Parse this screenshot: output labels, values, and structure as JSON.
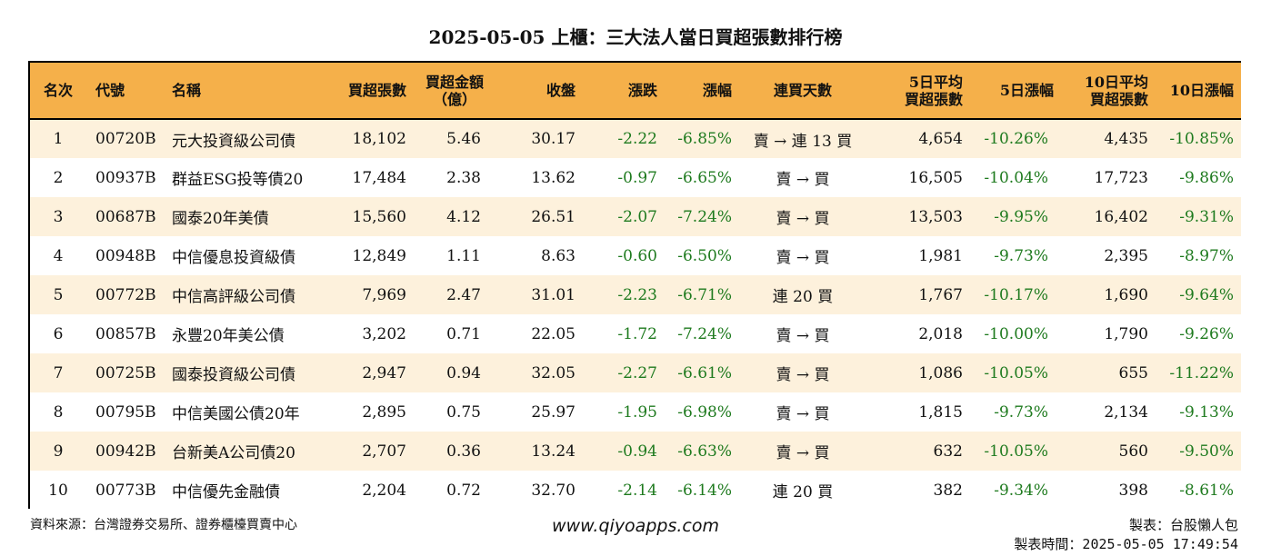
{
  "title": "2025-05-05 上櫃：三大法人當日買超張數排行榜",
  "headers": {
    "rank": "名次",
    "code": "代號",
    "name": "名稱",
    "buy_lots": "買超張數",
    "buy_amount_1": "買超金額",
    "buy_amount_2": "（億）",
    "close": "收盤",
    "change": "漲跌",
    "pct": "漲幅",
    "days": "連買天數",
    "avg5_1": "5日平均",
    "avg5_2": "買超張數",
    "pct5": "5日漲幅",
    "avg10_1": "10日平均",
    "avg10_2": "買超張數",
    "pct10": "10日漲幅"
  },
  "rows": [
    {
      "rank": "1",
      "code": "00720B",
      "name": "元大投資級公司債",
      "buy_lots": "18,102",
      "buy_amount": "5.46",
      "close": "30.17",
      "change": "-2.22",
      "pct": "-6.85%",
      "days": "賣 → 連 13 買",
      "avg5": "4,654",
      "pct5": "-10.26%",
      "avg10": "4,435",
      "pct10": "-10.85%"
    },
    {
      "rank": "2",
      "code": "00937B",
      "name": "群益ESG投等債20",
      "buy_lots": "17,484",
      "buy_amount": "2.38",
      "close": "13.62",
      "change": "-0.97",
      "pct": "-6.65%",
      "days": "賣 → 買",
      "avg5": "16,505",
      "pct5": "-10.04%",
      "avg10": "17,723",
      "pct10": "-9.86%"
    },
    {
      "rank": "3",
      "code": "00687B",
      "name": "國泰20年美債",
      "buy_lots": "15,560",
      "buy_amount": "4.12",
      "close": "26.51",
      "change": "-2.07",
      "pct": "-7.24%",
      "days": "賣 → 買",
      "avg5": "13,503",
      "pct5": "-9.95%",
      "avg10": "16,402",
      "pct10": "-9.31%"
    },
    {
      "rank": "4",
      "code": "00948B",
      "name": "中信優息投資級債",
      "buy_lots": "12,849",
      "buy_amount": "1.11",
      "close": "8.63",
      "change": "-0.60",
      "pct": "-6.50%",
      "days": "賣 → 買",
      "avg5": "1,981",
      "pct5": "-9.73%",
      "avg10": "2,395",
      "pct10": "-8.97%"
    },
    {
      "rank": "5",
      "code": "00772B",
      "name": "中信高評級公司債",
      "buy_lots": "7,969",
      "buy_amount": "2.47",
      "close": "31.01",
      "change": "-2.23",
      "pct": "-6.71%",
      "days": "連 20 買",
      "avg5": "1,767",
      "pct5": "-10.17%",
      "avg10": "1,690",
      "pct10": "-9.64%"
    },
    {
      "rank": "6",
      "code": "00857B",
      "name": "永豐20年美公債",
      "buy_lots": "3,202",
      "buy_amount": "0.71",
      "close": "22.05",
      "change": "-1.72",
      "pct": "-7.24%",
      "days": "賣 → 買",
      "avg5": "2,018",
      "pct5": "-10.00%",
      "avg10": "1,790",
      "pct10": "-9.26%"
    },
    {
      "rank": "7",
      "code": "00725B",
      "name": "國泰投資級公司債",
      "buy_lots": "2,947",
      "buy_amount": "0.94",
      "close": "32.05",
      "change": "-2.27",
      "pct": "-6.61%",
      "days": "賣 → 買",
      "avg5": "1,086",
      "pct5": "-10.05%",
      "avg10": "655",
      "pct10": "-11.22%"
    },
    {
      "rank": "8",
      "code": "00795B",
      "name": "中信美國公債20年",
      "buy_lots": "2,895",
      "buy_amount": "0.75",
      "close": "25.97",
      "change": "-1.95",
      "pct": "-6.98%",
      "days": "賣 → 買",
      "avg5": "1,815",
      "pct5": "-9.73%",
      "avg10": "2,134",
      "pct10": "-9.13%"
    },
    {
      "rank": "9",
      "code": "00942B",
      "name": "台新美A公司債20",
      "buy_lots": "2,707",
      "buy_amount": "0.36",
      "close": "13.24",
      "change": "-0.94",
      "pct": "-6.63%",
      "days": "賣 → 買",
      "avg5": "632",
      "pct5": "-10.05%",
      "avg10": "560",
      "pct10": "-9.50%"
    },
    {
      "rank": "10",
      "code": "00773B",
      "name": "中信優先金融債",
      "buy_lots": "2,204",
      "buy_amount": "0.72",
      "close": "32.70",
      "change": "-2.14",
      "pct": "-6.14%",
      "days": "連 20 買",
      "avg5": "382",
      "pct5": "-9.34%",
      "avg10": "398",
      "pct10": "-8.61%"
    }
  ],
  "footer": {
    "source": "資料來源：台灣證券交易所、證券櫃檯買賣中心",
    "website": "www.qiyoapps.com",
    "maker": "製表：台股懶人包",
    "made_time": "製表時間：2025-05-05 17:49:54"
  },
  "colors": {
    "header_bg": "#f5b04a",
    "stripe": "#fdf1dc",
    "negative": "#1e7a1e"
  }
}
